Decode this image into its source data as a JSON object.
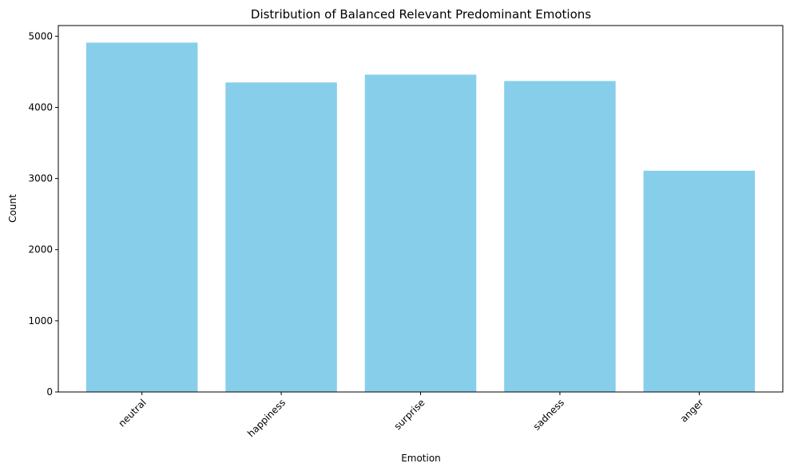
{
  "chart_data": {
    "type": "bar",
    "title": "Distribution of Balanced Relevant Predominant Emotions",
    "xlabel": "Emotion",
    "ylabel": "Count",
    "categories": [
      "neutral",
      "happiness",
      "surprise",
      "sadness",
      "anger"
    ],
    "values": [
      4910,
      4350,
      4460,
      4370,
      3110
    ],
    "ylim": [
      0,
      5150
    ],
    "yticks": [
      0,
      1000,
      2000,
      3000,
      4000,
      5000
    ],
    "bar_color": "#87CEEB",
    "grid": false,
    "x_tick_rotation_deg": 45
  }
}
